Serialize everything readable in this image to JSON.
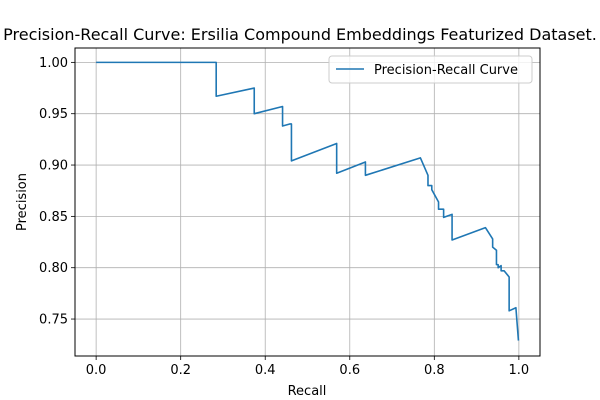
{
  "chart_data": {
    "type": "line",
    "title": "Precision-Recall Curve: Ersilia Compound Embeddings Featurized Dataset.",
    "xlabel": "Recall",
    "ylabel": "Precision",
    "xlim": [
      -0.05,
      1.05
    ],
    "ylim": [
      0.714,
      1.014
    ],
    "xticks": [
      0.0,
      0.2,
      0.4,
      0.6,
      0.8,
      1.0
    ],
    "xtick_labels": [
      "0.0",
      "0.2",
      "0.4",
      "0.6",
      "0.8",
      "1.0"
    ],
    "yticks": [
      0.75,
      0.8,
      0.85,
      0.9,
      0.95,
      1.0
    ],
    "ytick_labels": [
      "0.75",
      "0.80",
      "0.85",
      "0.90",
      "0.95",
      "1.00"
    ],
    "grid": true,
    "legend_position": "top-right",
    "series": [
      {
        "name": "Precision-Recall Curve",
        "color": "#1f77b4",
        "x": [
          0.0,
          0.284,
          0.284,
          0.374,
          0.374,
          0.441,
          0.441,
          0.458,
          0.458,
          0.462,
          0.462,
          0.569,
          0.569,
          0.637,
          0.637,
          0.767,
          0.785,
          0.785,
          0.794,
          0.794,
          0.81,
          0.81,
          0.822,
          0.822,
          0.842,
          0.842,
          0.921,
          0.938,
          0.938,
          0.947,
          0.947,
          0.951,
          0.951,
          0.958,
          0.958,
          0.965,
          0.977,
          0.977,
          0.993,
          0.993,
          0.999
        ],
        "y": [
          1.0,
          1.0,
          0.967,
          0.975,
          0.95,
          0.957,
          0.938,
          0.94,
          0.94,
          0.94,
          0.904,
          0.921,
          0.892,
          0.903,
          0.89,
          0.907,
          0.89,
          0.88,
          0.88,
          0.876,
          0.864,
          0.857,
          0.857,
          0.849,
          0.852,
          0.827,
          0.839,
          0.828,
          0.82,
          0.817,
          0.803,
          0.803,
          0.8,
          0.802,
          0.797,
          0.797,
          0.791,
          0.758,
          0.761,
          0.761,
          0.729
        ]
      }
    ]
  }
}
